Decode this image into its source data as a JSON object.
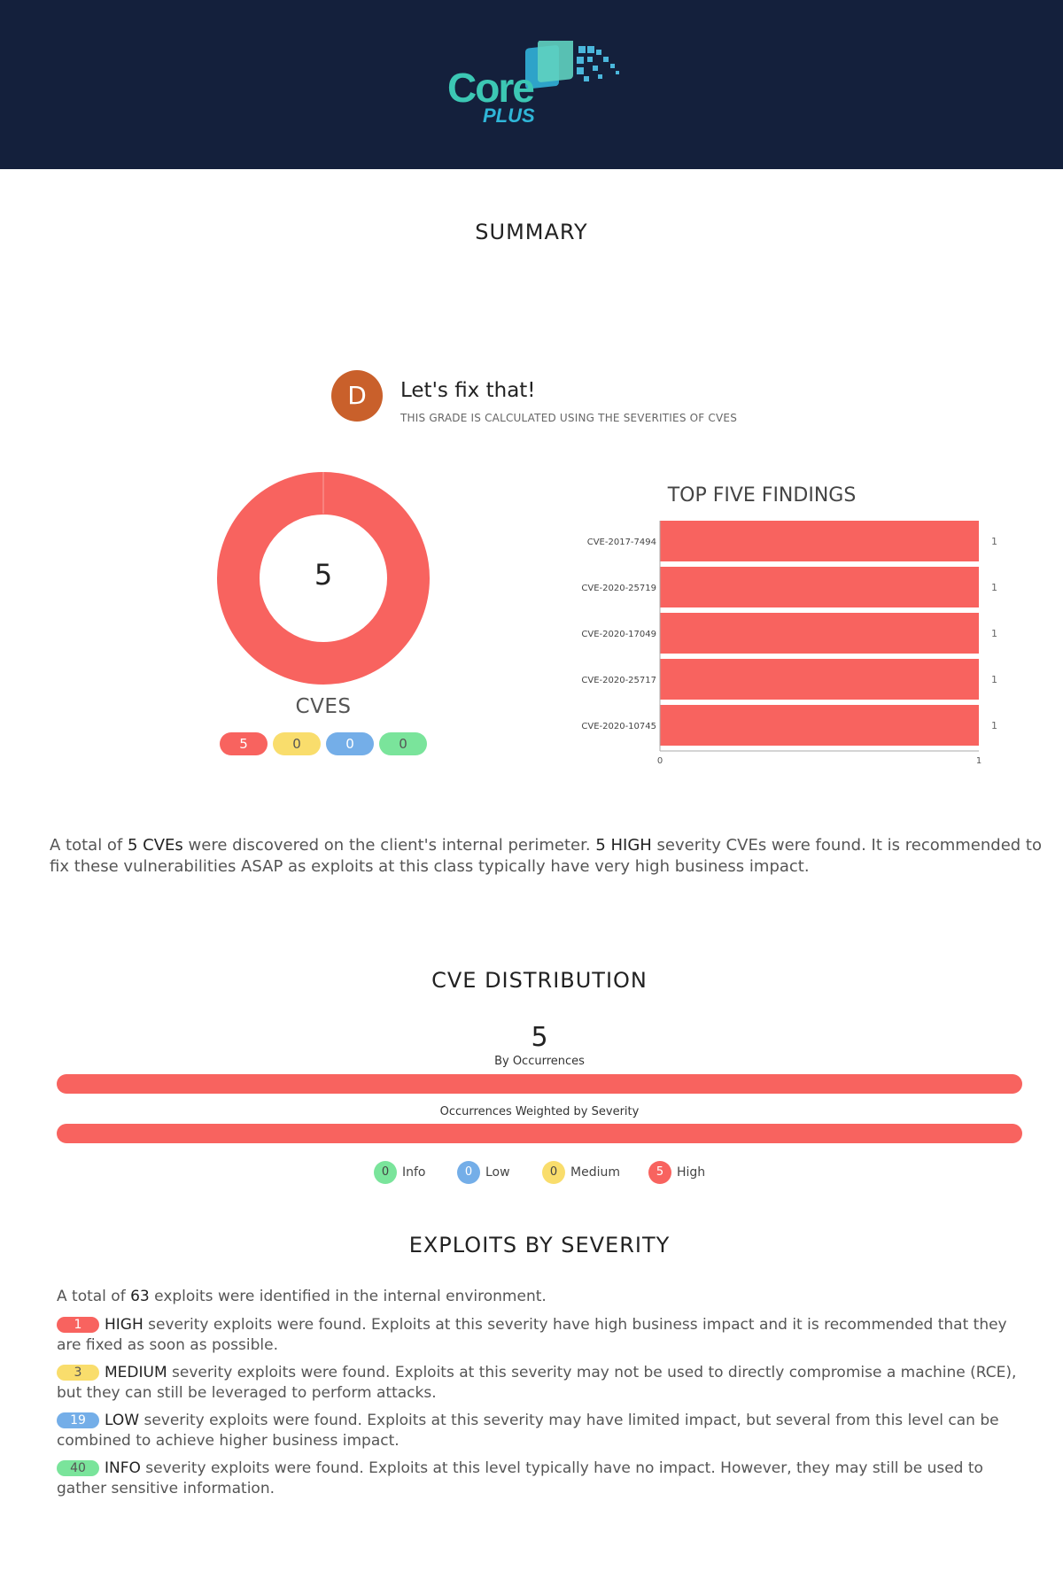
{
  "brand": {
    "name": "Core",
    "sub": "PLUS"
  },
  "summary": {
    "title": "SUMMARY",
    "grade": {
      "letter": "D",
      "heading": "Let's fix that!",
      "subheading": "THIS GRADE IS CALCULATED USING THE SEVERITIES OF CVES"
    },
    "cves": {
      "total": "5",
      "label": "CVES",
      "counts": [
        "5",
        "0",
        "0",
        "0"
      ]
    },
    "text": {
      "p1": "A total of ",
      "count": "5 CVEs",
      "p2": " were discovered on the client's internal perimeter. ",
      "high": "5 HIGH",
      "p3": " severity CVEs were found. It is recommended to fix these vulnerabilities ASAP as exploits at this class typically have very high business impact."
    }
  },
  "top_findings_title": "TOP FIVE FINDINGS",
  "chart_data": [
    {
      "type": "pie",
      "title": "CVES",
      "categories": [
        "High",
        "Medium",
        "Low",
        "Info"
      ],
      "values": [
        5,
        0,
        0,
        0
      ]
    },
    {
      "type": "bar",
      "orientation": "horizontal",
      "title": "TOP FIVE FINDINGS",
      "categories": [
        "CVE-2017-7494",
        "CVE-2020-25719",
        "CVE-2020-17049",
        "CVE-2020-25717",
        "CVE-2020-10745"
      ],
      "values": [
        1,
        1,
        1,
        1,
        1
      ],
      "value_labels": [
        "1",
        "1",
        "1",
        "1",
        "1"
      ],
      "xlim": [
        0,
        1
      ],
      "xticks": [
        "0",
        "1"
      ]
    }
  ],
  "distribution": {
    "title": "CVE DISTRIBUTION",
    "total": "5",
    "by_occurrences": "By Occurrences",
    "weighted": "Occurrences Weighted by Severity",
    "legend": [
      {
        "count": "0",
        "label": "Info"
      },
      {
        "count": "0",
        "label": "Low"
      },
      {
        "count": "0",
        "label": "Medium"
      },
      {
        "count": "5",
        "label": "High"
      }
    ]
  },
  "exploits": {
    "title": "EXPLOITS BY SEVERITY",
    "intro_a": "A total of ",
    "intro_count": "63",
    "intro_b": " exploits were identified in the internal environment.",
    "items": [
      {
        "count": "1",
        "level": "HIGH",
        "text": " severity exploits were found. Exploits at this severity have high business impact and it is recommended that they are fixed as soon as possible."
      },
      {
        "count": "3",
        "level": "MEDIUM",
        "text": " severity exploits were found. Exploits at this severity may not be used to directly compromise a machine (RCE), but they can still be leveraged to perform attacks."
      },
      {
        "count": "19",
        "level": "LOW",
        "text": " severity exploits were found. Exploits at this severity may have limited impact, but several from this level can be combined to achieve higher business impact."
      },
      {
        "count": "40",
        "level": "INFO",
        "text": " severity exploits were found. Exploits at this level typically have no impact. However, they may still be used to gather sensitive information."
      }
    ]
  },
  "colors": {
    "high": "#f8635f",
    "medium": "#f9dd6c",
    "low": "#74aee8",
    "info": "#7ae49b",
    "header": "#14203c",
    "grade": "#c9602b"
  }
}
